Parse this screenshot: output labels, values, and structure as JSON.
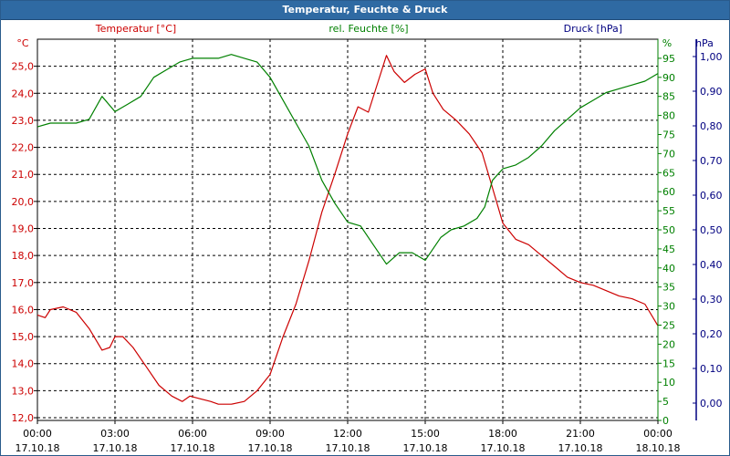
{
  "window": {
    "title": "Temperatur, Feuchte & Druck"
  },
  "colors": {
    "temperature": "#cc0000",
    "humidity": "#008000",
    "pressure": "#000080",
    "title_bar": "#2f6aa3",
    "grid": "#000000"
  },
  "chart_data": {
    "type": "line",
    "title": "Temperatur, Feuchte & Druck",
    "grid": true,
    "x_range": [
      "17.10.18 00:00",
      "18.10.18 00:00"
    ],
    "x_ticks": [
      {
        "time": "00:00",
        "date": "17.10.18"
      },
      {
        "time": "03:00",
        "date": "17.10.18"
      },
      {
        "time": "06:00",
        "date": "17.10.18"
      },
      {
        "time": "09:00",
        "date": "17.10.18"
      },
      {
        "time": "12:00",
        "date": "17.10.18"
      },
      {
        "time": "15:00",
        "date": "17.10.18"
      },
      {
        "time": "18:00",
        "date": "17.10.18"
      },
      {
        "time": "21:00",
        "date": "17.10.18"
      },
      {
        "time": "00:00",
        "date": "18.10.18"
      }
    ],
    "axes": {
      "temperature": {
        "label": "Temperatur [°C]",
        "unit": "°C",
        "side": "left",
        "ylim": [
          11.9,
          26.0
        ],
        "ticks": [
          "12,0",
          "13,0",
          "14,0",
          "15,0",
          "16,0",
          "17,0",
          "18,0",
          "19,0",
          "20,0",
          "21,0",
          "22,0",
          "23,0",
          "24,0",
          "25,0"
        ]
      },
      "humidity": {
        "label": "rel. Feuchte [%]",
        "unit": "%",
        "side": "right",
        "ylim": [
          0,
          100
        ],
        "ticks": [
          "0",
          "5",
          "10",
          "15",
          "20",
          "25",
          "30",
          "35",
          "40",
          "45",
          "50",
          "55",
          "60",
          "65",
          "70",
          "75",
          "80",
          "85",
          "90",
          "95"
        ]
      },
      "pressure": {
        "label": "Druck [hPa]",
        "unit": "hPa",
        "side": "right",
        "ylim": [
          -0.05,
          1.05
        ],
        "ticks": [
          "0,00",
          "0,10",
          "0,20",
          "0,30",
          "0,40",
          "0,50",
          "0,60",
          "0,70",
          "0,80",
          "0,90",
          "1,00"
        ]
      }
    },
    "series": [
      {
        "name": "Temperatur [°C]",
        "axis": "temperature",
        "x_hours": [
          0,
          0.3,
          0.5,
          1,
          1.5,
          2,
          2.5,
          2.8,
          3,
          3.3,
          3.7,
          4.2,
          4.7,
          5.2,
          5.6,
          5.9,
          6.3,
          6.7,
          7,
          7.5,
          8,
          8.5,
          9,
          9.5,
          10,
          10.5,
          11,
          11.5,
          12,
          12.4,
          12.8,
          13.2,
          13.5,
          13.8,
          14.2,
          14.6,
          15,
          15.3,
          15.7,
          16.2,
          16.7,
          17.2,
          17.6,
          18,
          18.5,
          19,
          19.5,
          20,
          20.5,
          21,
          21.5,
          22,
          22.5,
          23,
          23.5,
          24
        ],
        "y": [
          15.8,
          15.7,
          16.0,
          16.1,
          15.9,
          15.3,
          14.5,
          14.6,
          15.0,
          15.0,
          14.6,
          13.9,
          13.2,
          12.8,
          12.6,
          12.8,
          12.7,
          12.6,
          12.5,
          12.5,
          12.6,
          13.0,
          13.6,
          15.0,
          16.2,
          17.8,
          19.6,
          21.0,
          22.5,
          23.5,
          23.3,
          24.5,
          25.4,
          24.8,
          24.4,
          24.7,
          24.9,
          24.0,
          23.4,
          23.0,
          22.5,
          21.8,
          20.5,
          19.2,
          18.6,
          18.4,
          18.0,
          17.6,
          17.2,
          17.0,
          16.9,
          16.7,
          16.5,
          16.4,
          16.2,
          15.4
        ]
      },
      {
        "name": "rel. Feuchte [%]",
        "axis": "humidity",
        "x_hours": [
          0,
          0.5,
          1,
          1.5,
          2,
          2.5,
          3,
          3.5,
          4,
          4.5,
          5,
          5.5,
          6,
          6.5,
          7,
          7.5,
          8,
          8.5,
          9,
          9.5,
          10,
          10.5,
          11,
          11.5,
          12,
          12.5,
          13,
          13.5,
          14,
          14.5,
          15,
          15.3,
          15.6,
          16,
          16.5,
          17,
          17.3,
          17.6,
          18,
          18.5,
          19,
          19.5,
          20,
          20.5,
          21,
          21.5,
          22,
          22.5,
          23,
          23.5,
          24
        ],
        "y": [
          77,
          78,
          78,
          78,
          79,
          85,
          81,
          83,
          85,
          90,
          92,
          94,
          95,
          95,
          95,
          96,
          95,
          94,
          90,
          84,
          78,
          72,
          63,
          57,
          52,
          51,
          46,
          41,
          44,
          44,
          42,
          45,
          48,
          50,
          51,
          53,
          56,
          63,
          66,
          67,
          69,
          72,
          76,
          79,
          82,
          84,
          86,
          87,
          88,
          89,
          91
        ]
      }
    ]
  }
}
